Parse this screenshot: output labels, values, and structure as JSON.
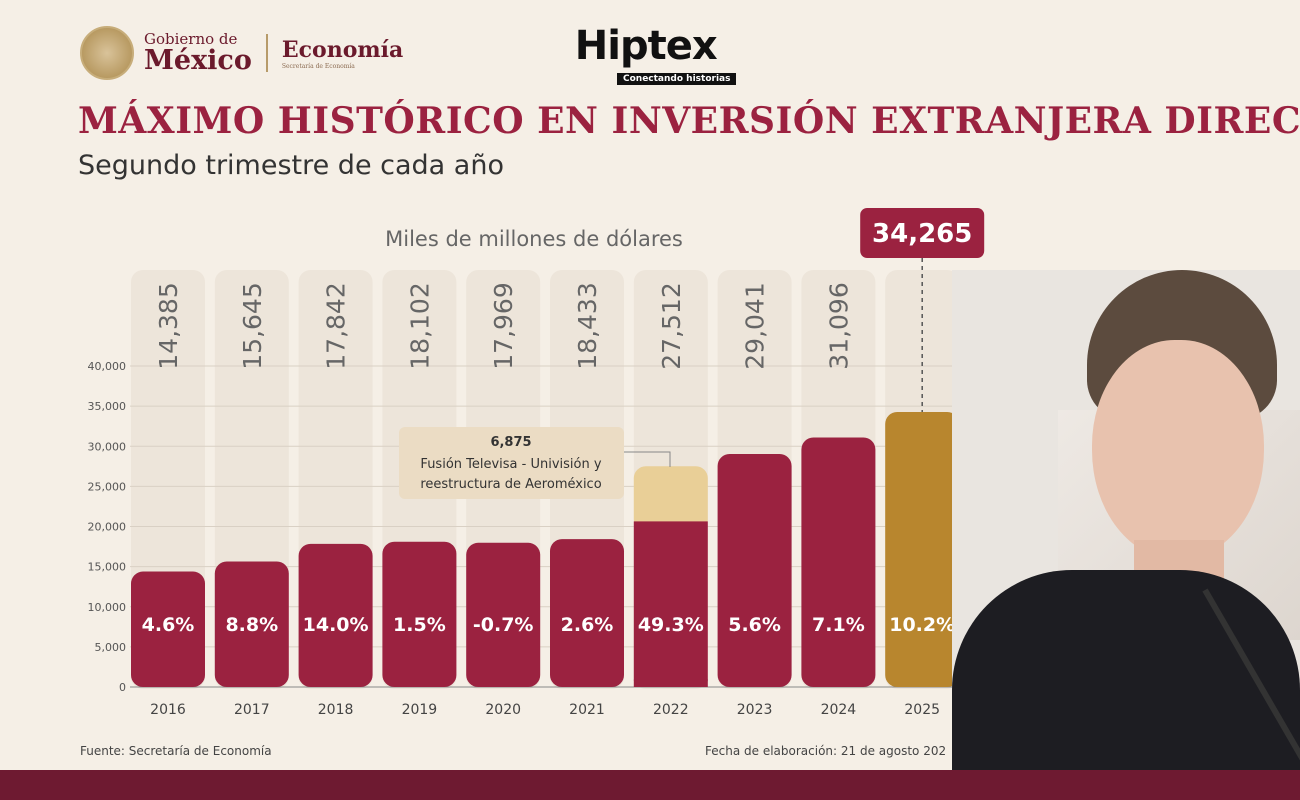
{
  "header": {
    "gob_line1": "Gobierno de",
    "gob_line2": "México",
    "dept": "Economía",
    "dept_sub": "Secretaría de Economía",
    "brand": "Hiptex",
    "brand_tagline": "Conectando historias"
  },
  "title": "MÁXIMO HISTÓRICO EN INVERSIÓN EXTRANJERA DIRECTA",
  "subtitle": "Segundo trimestre de cada año",
  "chart_data": {
    "type": "bar",
    "unit_label": "Miles de millones de dólares",
    "categories": [
      "2016",
      "2017",
      "2018",
      "2019",
      "2020",
      "2021",
      "2022",
      "2023",
      "2024",
      "2025"
    ],
    "values": [
      14385,
      15645,
      17842,
      18102,
      17969,
      18433,
      27512,
      29041,
      31096,
      34265
    ],
    "value_labels": [
      "14,385",
      "15,645",
      "17,842",
      "18,102",
      "17,969",
      "18,433",
      "27,512",
      "29,041",
      "31,096",
      ""
    ],
    "growth_labels": [
      "4.6%",
      "8.8%",
      "14.0%",
      "1.5%",
      "-0.7%",
      "2.6%",
      "49.3%",
      "5.6%",
      "7.1%",
      "10.2%"
    ],
    "highlight": {
      "category": "2025",
      "label": "34,265"
    },
    "stacked_extra": {
      "category": "2022",
      "value": 6875
    },
    "annotation": {
      "value": "6,875",
      "line1": "Fusión Televisa - Univisión y",
      "line2": "reestructura de Aeroméxico"
    },
    "ylim": [
      0,
      40000
    ],
    "yticks": [
      0,
      5000,
      10000,
      15000,
      20000,
      25000,
      30000,
      35000,
      40000
    ],
    "ytick_labels": [
      "0",
      "5,000",
      "10,000",
      "15,000",
      "20,000",
      "25,000",
      "30,000",
      "35,000",
      "40,000"
    ],
    "grid": true,
    "colors": {
      "bar": "#9b2240",
      "extra": "#e9cf97",
      "highlight": "#b8862e",
      "column_bg": "#ede5da"
    }
  },
  "footer": {
    "source": "Fuente: Secretaría de Economía",
    "date": "Fecha de elaboración: 21 de agosto 202"
  }
}
